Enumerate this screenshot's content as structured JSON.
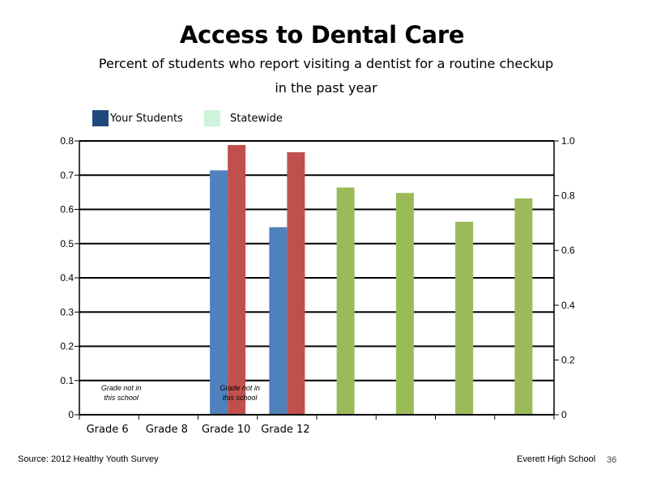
{
  "title": "Access to Dental Care",
  "subtitle_line1": "Percent of students who report visiting a dentist for a routine checkup",
  "subtitle_line2": "in the past year",
  "legend": [
    {
      "label": "Your Students",
      "color": "#1f497d"
    },
    {
      "label": "Statewide",
      "color": "#ccf5dc"
    }
  ],
  "footer": {
    "source": "Source: 2012 Healthy Youth Survey",
    "school": "Everett High School",
    "page": "36"
  },
  "chart_data": {
    "type": "bar",
    "categories": [
      "Grade 6",
      "Grade 8",
      "Grade 10",
      "Grade 12",
      "",
      "",
      "",
      ""
    ],
    "series": [
      {
        "values": [
          null,
          null,
          0.714,
          0.548,
          null,
          null,
          null,
          null
        ],
        "color": "#4f81bd",
        "axis": "left"
      },
      {
        "values": [
          null,
          null,
          0.788,
          0.767,
          null,
          null,
          null,
          null
        ],
        "color": "#c0504d",
        "axis": "left"
      },
      {
        "values": [
          null,
          null,
          null,
          null,
          0.83,
          0.81,
          0.705,
          0.79
        ],
        "color": "#9bbb59",
        "axis": "right"
      }
    ],
    "y_left": {
      "min": 0,
      "max": 0.8,
      "ticks": [
        "0",
        "0.1",
        "0.2",
        "0.3",
        "0.4",
        "0.5",
        "0.6",
        "0.7",
        "0.8"
      ]
    },
    "y_right": {
      "min": 0,
      "max": 1.0,
      "ticks": [
        "0",
        "0.2",
        "0.4",
        "0.6",
        "0.8",
        "1.0"
      ]
    },
    "grid": true,
    "annotations": [
      {
        "category": "Grade 6",
        "line1": "Grade not in",
        "line2": "this school"
      },
      {
        "category": "Grade 10",
        "line1": "Grade not in",
        "line2": "this school"
      }
    ]
  }
}
